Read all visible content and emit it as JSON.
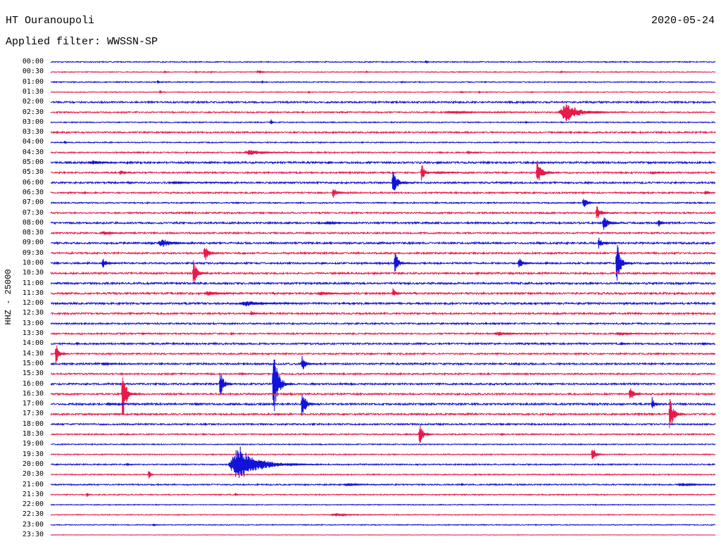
{
  "chart_data": {
    "type": "line",
    "title": "HT Ouranoupoli",
    "date": "2020-05-24",
    "subtitle": "Applied filter: WWSSN-SP",
    "ylabel": "HHZ - 25000",
    "grid": false,
    "trace_colors": [
      "#1212d8",
      "#e8194b"
    ],
    "rows": [
      {
        "label": "00:00",
        "noise": 1200,
        "events": [
          {
            "minute": 16.9,
            "amp": 6000,
            "dur": 8
          }
        ]
      },
      {
        "label": "00:30",
        "noise": 1000,
        "events": [
          {
            "minute": 5.1,
            "amp": 3500,
            "dur": 4
          },
          {
            "minute": 6.5,
            "amp": 2500,
            "dur": 4
          },
          {
            "minute": 7.2,
            "amp": 2500,
            "dur": 4
          },
          {
            "minute": 9.3,
            "amp": 4000,
            "dur": 40
          },
          {
            "minute": 14.2,
            "amp": 3000,
            "dur": 4
          },
          {
            "minute": 23.0,
            "amp": 3000,
            "dur": 4
          }
        ]
      },
      {
        "label": "01:00",
        "noise": 1200,
        "events": [
          {
            "minute": 4.8,
            "amp": 5000,
            "dur": 6
          },
          {
            "minute": 9.5,
            "amp": 3000,
            "dur": 4
          },
          {
            "minute": 15.8,
            "amp": 3000,
            "dur": 4
          }
        ]
      },
      {
        "label": "01:30",
        "noise": 1000,
        "events": [
          {
            "minute": 4.9,
            "amp": 5000,
            "dur": 6
          },
          {
            "minute": 11.6,
            "amp": 3000,
            "dur": 4
          },
          {
            "minute": 18.5,
            "amp": 3500,
            "dur": 4
          },
          {
            "minute": 19.3,
            "amp": 2500,
            "dur": 4
          }
        ]
      },
      {
        "label": "02:00",
        "noise": 2000,
        "events": []
      },
      {
        "label": "02:30",
        "noise": 1500,
        "events": [
          {
            "minute": 13.1,
            "amp": 2500,
            "dur": 6
          },
          {
            "minute": 17.7,
            "amp": 3500,
            "dur": 130
          },
          {
            "minute": 22.9,
            "amp": 24000,
            "dur": 110
          }
        ]
      },
      {
        "label": "03:00",
        "noise": 1200,
        "events": [
          {
            "minute": 9.9,
            "amp": 10000,
            "dur": 8
          },
          {
            "minute": 21.4,
            "amp": 3000,
            "dur": 6
          }
        ]
      },
      {
        "label": "03:30",
        "noise": 1800,
        "events": []
      },
      {
        "label": "04:00",
        "noise": 1200,
        "events": [
          {
            "minute": 0.6,
            "amp": 5000,
            "dur": 8
          }
        ]
      },
      {
        "label": "04:30",
        "noise": 1500,
        "events": [
          {
            "minute": 8.7,
            "amp": 8000,
            "dur": 90
          },
          {
            "minute": 18.8,
            "amp": 5000,
            "dur": 20
          }
        ]
      },
      {
        "label": "05:00",
        "noise": 2200,
        "events": [
          {
            "minute": 1.7,
            "amp": 6000,
            "dur": 60
          },
          {
            "minute": 12.5,
            "amp": 4000,
            "dur": 10
          }
        ]
      },
      {
        "label": "05:30",
        "noise": 1800,
        "events": [
          {
            "minute": 3.1,
            "amp": 10000,
            "dur": 25
          },
          {
            "minute": 16.7,
            "amp": 26000,
            "dur": 25
          },
          {
            "minute": 17.3,
            "amp": 3000,
            "dur": 70
          },
          {
            "minute": 21.9,
            "amp": 38000,
            "dur": 40
          },
          {
            "minute": 27.1,
            "amp": 3000,
            "dur": 40
          }
        ]
      },
      {
        "label": "06:00",
        "noise": 2000,
        "events": [
          {
            "minute": 5.3,
            "amp": 2500,
            "dur": 100
          },
          {
            "minute": 15.4,
            "amp": 32000,
            "dur": 40
          }
        ]
      },
      {
        "label": "06:30",
        "noise": 1800,
        "events": [
          {
            "minute": 12.7,
            "amp": 16000,
            "dur": 30
          },
          {
            "minute": 29.5,
            "amp": 8000,
            "dur": 20
          }
        ]
      },
      {
        "label": "07:00",
        "noise": 1500,
        "events": [
          {
            "minute": 24.0,
            "amp": 17000,
            "dur": 30
          }
        ]
      },
      {
        "label": "07:30",
        "noise": 1800,
        "events": [
          {
            "minute": 24.6,
            "amp": 21000,
            "dur": 35
          }
        ]
      },
      {
        "label": "08:00",
        "noise": 2000,
        "events": [
          {
            "minute": 10.7,
            "amp": 3000,
            "dur": 8
          },
          {
            "minute": 12.3,
            "amp": 5000,
            "dur": 60
          },
          {
            "minute": 24.9,
            "amp": 21000,
            "dur": 40
          },
          {
            "minute": 27.4,
            "amp": 14000,
            "dur": 20
          }
        ]
      },
      {
        "label": "08:30",
        "noise": 1800,
        "events": [
          {
            "minute": 2.2,
            "amp": 5000,
            "dur": 60
          }
        ]
      },
      {
        "label": "09:00",
        "noise": 2200,
        "events": [
          {
            "minute": 4.8,
            "amp": 12000,
            "dur": 70
          },
          {
            "minute": 22.0,
            "amp": 3500,
            "dur": 10
          },
          {
            "minute": 24.7,
            "amp": 17000,
            "dur": 30
          }
        ]
      },
      {
        "label": "09:30",
        "noise": 2000,
        "events": [
          {
            "minute": 6.9,
            "amp": 26000,
            "dur": 30
          }
        ]
      },
      {
        "label": "10:00",
        "noise": 2000,
        "events": [
          {
            "minute": 2.3,
            "amp": 16000,
            "dur": 30
          },
          {
            "minute": 12.2,
            "amp": 3000,
            "dur": 8
          },
          {
            "minute": 15.5,
            "amp": 37000,
            "dur": 25
          },
          {
            "minute": 21.1,
            "amp": 17000,
            "dur": 30
          },
          {
            "minute": 25.5,
            "amp": 65000,
            "dur": 30
          }
        ]
      },
      {
        "label": "10:30",
        "noise": 2000,
        "events": [
          {
            "minute": 6.4,
            "amp": 35000,
            "dur": 30
          },
          {
            "minute": 13.0,
            "amp": 3500,
            "dur": 10
          }
        ]
      },
      {
        "label": "11:00",
        "noise": 2200,
        "events": []
      },
      {
        "label": "11:30",
        "noise": 2200,
        "events": [
          {
            "minute": 6.9,
            "amp": 7000,
            "dur": 60
          },
          {
            "minute": 12.0,
            "amp": 5000,
            "dur": 60
          },
          {
            "minute": 15.4,
            "amp": 14000,
            "dur": 25
          }
        ]
      },
      {
        "label": "12:00",
        "noise": 2200,
        "events": [
          {
            "minute": 8.5,
            "amp": 8000,
            "dur": 100
          },
          {
            "minute": 14.2,
            "amp": 3500,
            "dur": 8
          }
        ]
      },
      {
        "label": "12:30",
        "noise": 2000,
        "events": [
          {
            "minute": 9.0,
            "amp": 8000,
            "dur": 20
          }
        ]
      },
      {
        "label": "13:00",
        "noise": 1800,
        "events": []
      },
      {
        "label": "13:30",
        "noise": 1800,
        "events": [
          {
            "minute": 4.1,
            "amp": 4000,
            "dur": 15
          },
          {
            "minute": 20.0,
            "amp": 6000,
            "dur": 70
          },
          {
            "minute": 25.5,
            "amp": 6000,
            "dur": 60
          }
        ]
      },
      {
        "label": "14:00",
        "noise": 2000,
        "events": [
          {
            "minute": 25.7,
            "amp": 5000,
            "dur": 15
          },
          {
            "minute": 29.4,
            "amp": 5000,
            "dur": 15
          }
        ]
      },
      {
        "label": "14:30",
        "noise": 1800,
        "events": [
          {
            "minute": 0.2,
            "amp": 30000,
            "dur": 25
          },
          {
            "minute": 14.4,
            "amp": 4000,
            "dur": 8
          }
        ]
      },
      {
        "label": "15:00",
        "noise": 2000,
        "events": [
          {
            "minute": 2.3,
            "amp": 5000,
            "dur": 55
          },
          {
            "minute": 11.3,
            "amp": 21000,
            "dur": 30
          }
        ]
      },
      {
        "label": "15:30",
        "noise": 1800,
        "events": [
          {
            "minute": 8.6,
            "amp": 5000,
            "dur": 15
          }
        ]
      },
      {
        "label": "16:00",
        "noise": 2000,
        "events": [
          {
            "minute": 7.6,
            "amp": 40000,
            "dur": 30
          },
          {
            "minute": 10.0,
            "amp": 96000,
            "dur": 40
          }
        ]
      },
      {
        "label": "16:30",
        "noise": 2000,
        "events": [
          {
            "minute": 3.2,
            "amp": 75000,
            "dur": 30
          },
          {
            "minute": 26.1,
            "amp": 23000,
            "dur": 30
          }
        ]
      },
      {
        "label": "17:00",
        "noise": 2200,
        "events": [
          {
            "minute": 2.5,
            "amp": 4000,
            "dur": 50
          },
          {
            "minute": 6.5,
            "amp": 5000,
            "dur": 10
          },
          {
            "minute": 11.3,
            "amp": 45000,
            "dur": 30
          },
          {
            "minute": 27.1,
            "amp": 21000,
            "dur": 20
          }
        ]
      },
      {
        "label": "17:30",
        "noise": 2000,
        "events": [
          {
            "minute": 10.2,
            "amp": 4000,
            "dur": 15
          },
          {
            "minute": 27.9,
            "amp": 49000,
            "dur": 30
          }
        ]
      },
      {
        "label": "18:00",
        "noise": 1800,
        "events": []
      },
      {
        "label": "18:30",
        "noise": 1500,
        "events": [
          {
            "minute": 16.6,
            "amp": 35000,
            "dur": 30
          },
          {
            "minute": 20.3,
            "amp": 4000,
            "dur": 15
          }
        ]
      },
      {
        "label": "19:00",
        "noise": 1200,
        "events": []
      },
      {
        "label": "19:30",
        "noise": 1200,
        "events": [
          {
            "minute": 24.4,
            "amp": 26000,
            "dur": 25
          }
        ]
      },
      {
        "label": "20:00",
        "noise": 1500,
        "events": [
          {
            "minute": 3.4,
            "amp": 4000,
            "dur": 15
          },
          {
            "minute": 8.0,
            "amp": 49000,
            "dur": 150
          }
        ]
      },
      {
        "label": "20:30",
        "noise": 1200,
        "events": [
          {
            "minute": 4.4,
            "amp": 21000,
            "dur": 10
          }
        ]
      },
      {
        "label": "21:00",
        "noise": 1500,
        "events": [
          {
            "minute": 13.2,
            "amp": 4000,
            "dur": 70
          },
          {
            "minute": 18.5,
            "amp": 4000,
            "dur": 10
          },
          {
            "minute": 28.2,
            "amp": 4000,
            "dur": 100
          }
        ]
      },
      {
        "label": "21:30",
        "noise": 1200,
        "events": [
          {
            "minute": 1.6,
            "amp": 8000,
            "dur": 10
          },
          {
            "minute": 8.3,
            "amp": 6000,
            "dur": 10
          }
        ]
      },
      {
        "label": "22:00",
        "noise": 1000,
        "events": []
      },
      {
        "label": "22:30",
        "noise": 1000,
        "events": [
          {
            "minute": 12.6,
            "amp": 4000,
            "dur": 90
          }
        ]
      },
      {
        "label": "23:00",
        "noise": 1000,
        "events": [
          {
            "minute": 4.6,
            "amp": 4000,
            "dur": 15
          }
        ]
      },
      {
        "label": "23:30",
        "noise": 500,
        "events": []
      }
    ]
  }
}
